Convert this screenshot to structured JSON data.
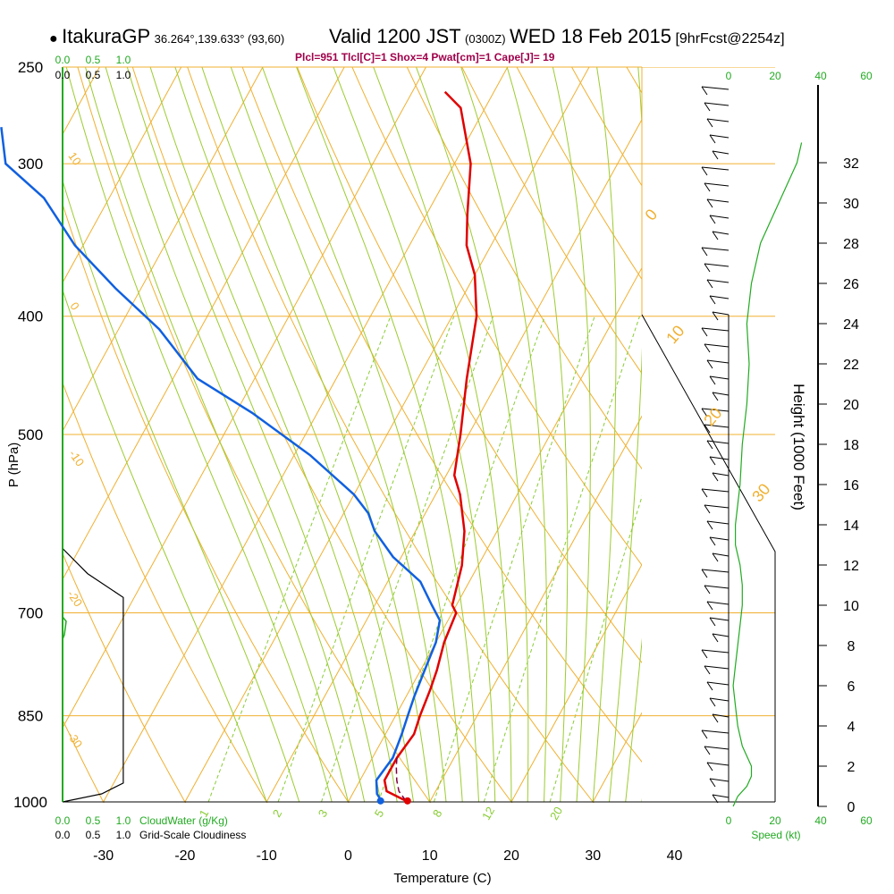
{
  "header": {
    "station": "ItakuraGP",
    "coords": "36.264°,139.633° (93,60)",
    "valid": "Valid 1200 JST",
    "zulu": "(0300Z)",
    "date": "WED 18 Feb 2015",
    "forecast": "[9hrFcst@2254z]",
    "indices": "Plcl=951 Tlcl[C]=1 Shox=4 Pwat[cm]=1 Cape[J]= 19"
  },
  "chart_data": {
    "type": "line",
    "title": "ItakuraGP Skew-T sounding, Valid 1200 JST WED 18 Feb 2015",
    "xlabel": "Temperature (C)",
    "ylabel": "P (hPa)",
    "xlim": [
      -35,
      36
    ],
    "ylim_hpa": [
      1000,
      250
    ],
    "x_ticks": [
      -30,
      -20,
      -10,
      0,
      10,
      20,
      30,
      40
    ],
    "p_ticks": [
      250,
      300,
      400,
      500,
      700,
      850,
      1000
    ],
    "mixing_ratio_labels": [
      "1",
      "2",
      "3",
      "5",
      "8",
      "12",
      "20"
    ],
    "saturation_adiabat_labels": [
      "0",
      "10",
      "20",
      "30"
    ],
    "dry_adiabat_labels": [
      "10",
      "0",
      "-10",
      "-20",
      "-30"
    ],
    "height_axis": {
      "label": "Height (1000 Feet)",
      "ticks": [
        0,
        2,
        4,
        6,
        8,
        10,
        12,
        14,
        16,
        18,
        20,
        22,
        24,
        26,
        28,
        30,
        32
      ]
    },
    "speed_axis": {
      "label": "Speed (kt)",
      "ticks": [
        "0",
        "20",
        "40",
        "60"
      ]
    },
    "cloud_water_axis": {
      "label": "CloudWater (g/Kg)",
      "ticks": [
        "0.0",
        "0.5",
        "1.0"
      ]
    },
    "cloudiness_axis": {
      "label": "Grid-Scale Cloudiness",
      "ticks": [
        "0.0",
        "0.5",
        "1.0"
      ]
    },
    "series": [
      {
        "name": "Temperature",
        "color": "#e00000",
        "points": [
          [
            7,
            998
          ],
          [
            4,
            980
          ],
          [
            3,
            960
          ],
          [
            3,
            920
          ],
          [
            3.5,
            880
          ],
          [
            3,
            850
          ],
          [
            2.5,
            810
          ],
          [
            2,
            780
          ],
          [
            1,
            740
          ],
          [
            0.5,
            700
          ],
          [
            -0.5,
            690
          ],
          [
            -2,
            640
          ],
          [
            -4,
            600
          ],
          [
            -7,
            560
          ],
          [
            -9,
            540
          ],
          [
            -11,
            500
          ],
          [
            -14,
            450
          ],
          [
            -17,
            400
          ],
          [
            -20,
            370
          ],
          [
            -23,
            350
          ],
          [
            -25,
            330
          ],
          [
            -28,
            300
          ],
          [
            -33,
            270
          ],
          [
            -36,
            262
          ]
        ]
      },
      {
        "name": "Dew Point",
        "color": "#1060e0",
        "points": [
          [
            4,
            998
          ],
          [
            3,
            985
          ],
          [
            2,
            960
          ],
          [
            2.5,
            920
          ],
          [
            2,
            880
          ],
          [
            1.5,
            850
          ],
          [
            1,
            820
          ],
          [
            0.5,
            780
          ],
          [
            0,
            740
          ],
          [
            -1,
            710
          ],
          [
            -3,
            690
          ],
          [
            -6,
            660
          ],
          [
            -11,
            630
          ],
          [
            -15,
            600
          ],
          [
            -17,
            580
          ],
          [
            -20,
            560
          ],
          [
            -28,
            520
          ],
          [
            -38,
            480
          ],
          [
            -47,
            450
          ],
          [
            -55,
            410
          ],
          [
            -63,
            380
          ],
          [
            -71,
            350
          ],
          [
            -78,
            320
          ],
          [
            -85,
            300
          ],
          [
            -88,
            280
          ]
        ]
      },
      {
        "name": "Parcel",
        "color": "#800040",
        "points": [
          [
            7,
            998
          ],
          [
            5.5,
            980
          ],
          [
            4.5,
            960
          ],
          [
            3.5,
            935
          ],
          [
            3,
            920
          ]
        ]
      }
    ],
    "surface_temp_marker": 7.2,
    "surface_dewpoint_marker": 3.9,
    "wind_barb_count": 45,
    "wind_speed_profile_kt": [
      [
        0,
        2
      ],
      [
        0.5,
        4
      ],
      [
        1,
        8
      ],
      [
        1.5,
        10
      ],
      [
        2,
        10
      ],
      [
        3,
        6
      ],
      [
        4,
        4
      ],
      [
        5,
        3
      ],
      [
        6,
        2
      ],
      [
        7,
        3
      ],
      [
        8,
        4
      ],
      [
        9,
        5
      ],
      [
        10,
        6
      ],
      [
        11,
        6
      ],
      [
        12,
        5
      ],
      [
        13,
        3
      ],
      [
        14,
        3
      ],
      [
        15,
        4
      ],
      [
        16,
        5
      ],
      [
        18,
        6
      ],
      [
        20,
        8
      ],
      [
        22,
        9
      ],
      [
        24,
        8
      ],
      [
        26,
        10
      ],
      [
        28,
        14
      ],
      [
        30,
        22
      ],
      [
        32,
        30
      ],
      [
        33,
        32
      ]
    ],
    "cloudiness_profile": [
      [
        1000,
        0.0
      ],
      [
        985,
        0.47
      ],
      [
        965,
        0.73
      ],
      [
        950,
        0.73
      ],
      [
        700,
        0.73
      ],
      [
        680,
        0.73
      ],
      [
        650,
        0.3
      ],
      [
        620,
        0.0
      ]
    ]
  }
}
